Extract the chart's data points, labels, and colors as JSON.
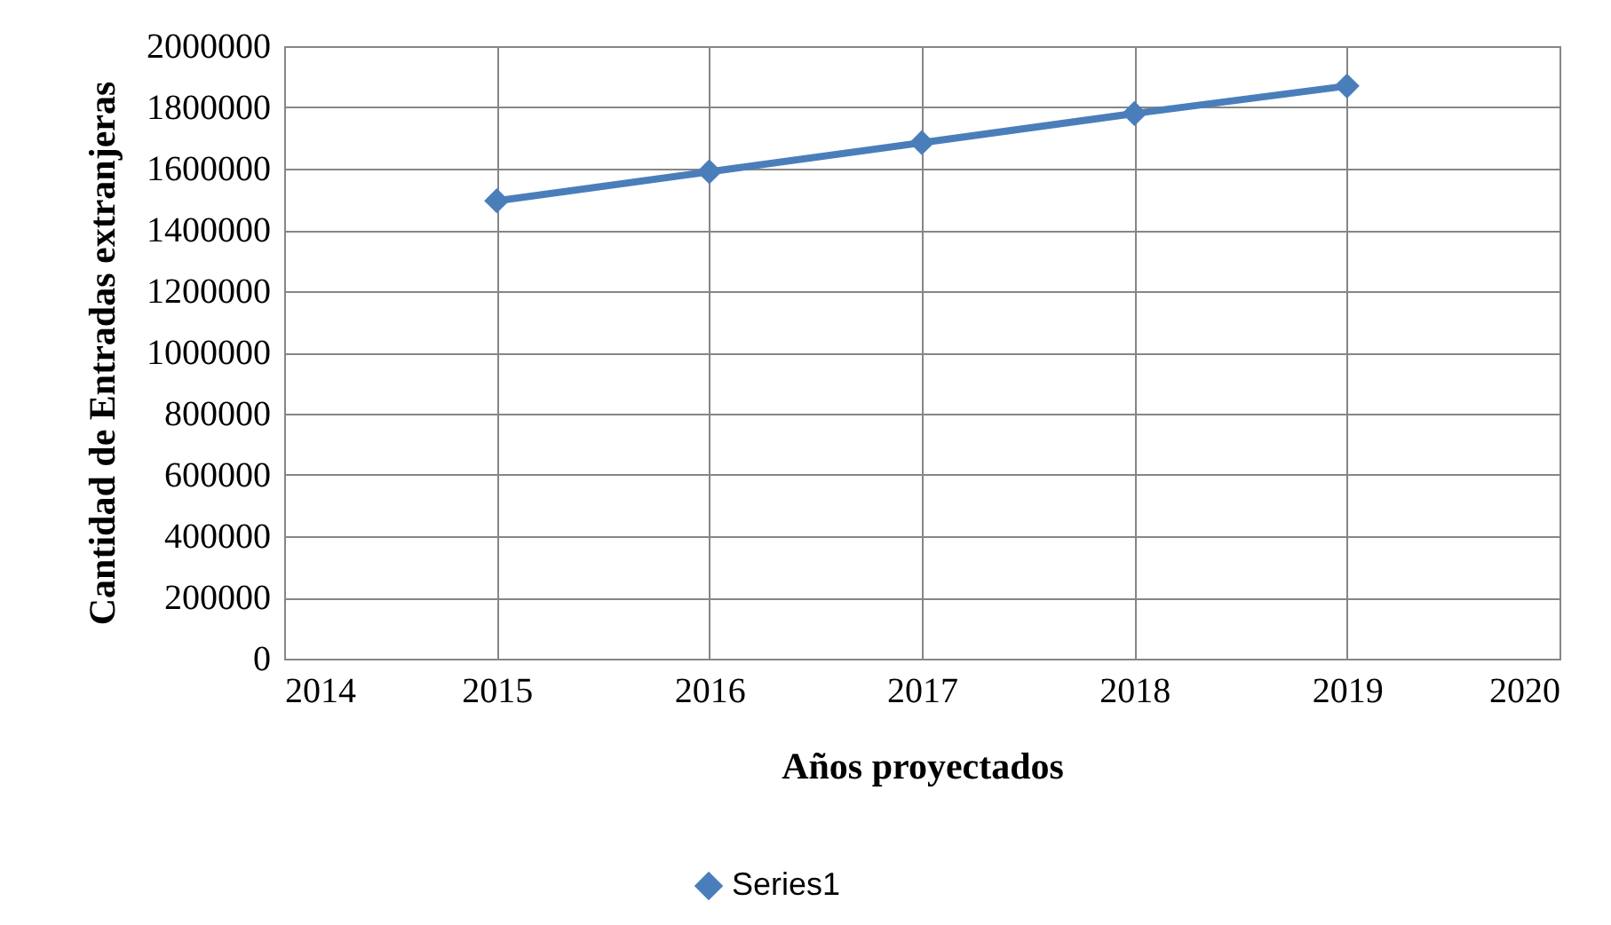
{
  "chart_data": {
    "type": "line",
    "xlabel": "Años proyectados",
    "ylabel": "Cantidad de Entradas extranjeras",
    "x": [
      2015,
      2016,
      2017,
      2018,
      2019
    ],
    "series": [
      {
        "name": "Series1",
        "color": "#4a7ebb",
        "values": [
          1495000,
          1590000,
          1685000,
          1780000,
          1870000
        ]
      }
    ],
    "xlim": [
      2014,
      2020
    ],
    "xticks": [
      2014,
      2015,
      2016,
      2017,
      2018,
      2019,
      2020
    ],
    "ylim": [
      0,
      2000000
    ],
    "yticks": [
      0,
      200000,
      400000,
      600000,
      800000,
      1000000,
      1200000,
      1400000,
      1600000,
      1800000,
      2000000
    ],
    "grid": true,
    "legend": "bottom",
    "marker": "diamond",
    "line_style": "solid"
  }
}
